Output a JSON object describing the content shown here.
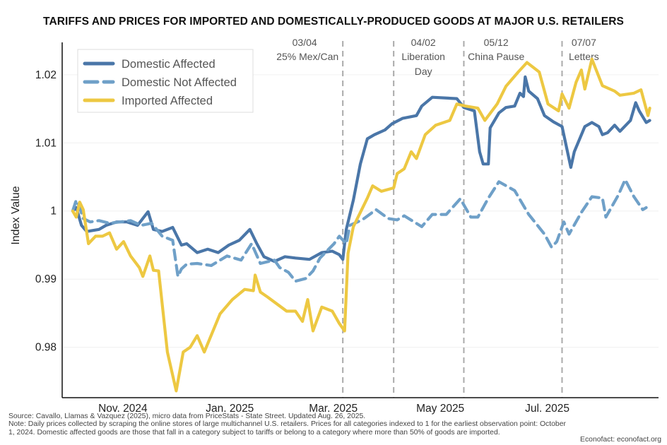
{
  "chart_data": {
    "type": "line",
    "title": "TARIFFS AND PRICES FOR IMPORTED AND DOMESTICALLY-PRODUCED GOODS AT MAJOR U.S. RETAILERS",
    "xlabel": "",
    "ylabel": "Index Value",
    "xlim": [
      "2024-09-25",
      "2025-08-31"
    ],
    "ylim": [
      0.9726,
      1.026
    ],
    "grid": "horizontal",
    "legend_position": "top-left",
    "x_ticks": [
      {
        "date": "2024-11-01",
        "label": "Nov. 2024"
      },
      {
        "date": "2025-01-01",
        "label": "Jan. 2025"
      },
      {
        "date": "2025-03-01",
        "label": "Mar. 2025"
      },
      {
        "date": "2025-05-01",
        "label": "May 2025"
      },
      {
        "date": "2025-07-01",
        "label": "Jul. 2025"
      }
    ],
    "y_ticks": [
      {
        "value": 0.98,
        "label": "0.98"
      },
      {
        "value": 0.99,
        "label": "0.99"
      },
      {
        "value": 1.0,
        "label": "1"
      },
      {
        "value": 1.01,
        "label": "1.01"
      },
      {
        "value": 1.02,
        "label": "1.02"
      }
    ],
    "events": [
      {
        "date": "2025-03-04",
        "label": "03/04",
        "text": [
          "25% Mex/Can"
        ],
        "side": "left"
      },
      {
        "date": "2025-04-02",
        "label": "04/02",
        "text": [
          "Liberation",
          "Day"
        ],
        "side": "right"
      },
      {
        "date": "2025-05-12",
        "label": "05/12",
        "text": [
          "China Pause"
        ],
        "side": "right"
      },
      {
        "date": "2025-07-07",
        "label": "07/07",
        "text": [
          "Letters"
        ],
        "side": "right"
      }
    ],
    "series": [
      {
        "name": "Domestic Affected",
        "color": "#4a76a8",
        "style": "solid",
        "points": [
          [
            "2024-10-01",
            1.0
          ],
          [
            "2024-10-03",
            1.0005
          ],
          [
            "2024-10-06",
            0.9979
          ],
          [
            "2024-10-09",
            0.997
          ],
          [
            "2024-10-16",
            0.9973
          ],
          [
            "2024-10-20",
            0.9979
          ],
          [
            "2024-10-26",
            0.9984
          ],
          [
            "2024-11-01",
            0.9984
          ],
          [
            "2024-11-07",
            0.9979
          ],
          [
            "2024-11-13",
            0.9999
          ],
          [
            "2024-11-16",
            0.9973
          ],
          [
            "2024-11-21",
            0.997
          ],
          [
            "2024-11-27",
            0.9976
          ],
          [
            "2024-12-02",
            0.995
          ],
          [
            "2024-12-05",
            0.9952
          ],
          [
            "2024-12-11",
            0.9939
          ],
          [
            "2024-12-17",
            0.9944
          ],
          [
            "2024-12-23",
            0.9939
          ],
          [
            "2024-12-29",
            0.995
          ],
          [
            "2025-01-04",
            0.9957
          ],
          [
            "2025-01-10",
            0.9973
          ],
          [
            "2025-01-14",
            0.9952
          ],
          [
            "2025-01-18",
            0.9933
          ],
          [
            "2025-01-24",
            0.9926
          ],
          [
            "2025-01-30",
            0.9933
          ],
          [
            "2025-02-05",
            0.9931
          ],
          [
            "2025-02-13",
            0.9929
          ],
          [
            "2025-02-20",
            0.9939
          ],
          [
            "2025-02-26",
            0.9941
          ],
          [
            "2025-03-02",
            0.9936
          ],
          [
            "2025-03-04",
            0.9929
          ],
          [
            "2025-03-06",
            0.9973
          ],
          [
            "2025-03-10",
            1.0016
          ],
          [
            "2025-03-14",
            1.0069
          ],
          [
            "2025-03-18",
            1.0106
          ],
          [
            "2025-03-22",
            1.0112
          ],
          [
            "2025-03-28",
            1.0119
          ],
          [
            "2025-04-01",
            1.0128
          ],
          [
            "2025-04-07",
            1.0136
          ],
          [
            "2025-04-15",
            1.014
          ],
          [
            "2025-04-18",
            1.0154
          ],
          [
            "2025-04-24",
            1.0167
          ],
          [
            "2025-05-08",
            1.0165
          ],
          [
            "2025-05-12",
            1.0152
          ],
          [
            "2025-05-18",
            1.0147
          ],
          [
            "2025-05-21",
            1.0087
          ],
          [
            "2025-05-23",
            1.0069
          ],
          [
            "2025-05-26",
            1.0069
          ],
          [
            "2025-05-27",
            1.0122
          ],
          [
            "2025-06-01",
            1.0144
          ],
          [
            "2025-06-05",
            1.0152
          ],
          [
            "2025-06-10",
            1.0154
          ],
          [
            "2025-06-13",
            1.0173
          ],
          [
            "2025-06-15",
            1.0168
          ],
          [
            "2025-06-16",
            1.0197
          ],
          [
            "2025-06-18",
            1.0176
          ],
          [
            "2025-06-23",
            1.0165
          ],
          [
            "2025-06-27",
            1.014
          ],
          [
            "2025-07-02",
            1.0131
          ],
          [
            "2025-07-07",
            1.0124
          ],
          [
            "2025-07-12",
            1.0064
          ],
          [
            "2025-07-14",
            1.0087
          ],
          [
            "2025-07-20",
            1.0124
          ],
          [
            "2025-07-24",
            1.013
          ],
          [
            "2025-07-28",
            1.0124
          ],
          [
            "2025-07-30",
            1.0112
          ],
          [
            "2025-08-02",
            1.0115
          ],
          [
            "2025-08-06",
            1.0126
          ],
          [
            "2025-08-09",
            1.0117
          ],
          [
            "2025-08-15",
            1.0133
          ],
          [
            "2025-08-18",
            1.0159
          ],
          [
            "2025-08-20",
            1.0147
          ],
          [
            "2025-08-24",
            1.013
          ],
          [
            "2025-08-26",
            1.0133
          ]
        ]
      },
      {
        "name": "Domestic Not Affected",
        "color": "#6fa0c8",
        "style": "dashed",
        "points": [
          [
            "2024-10-01",
            1.0
          ],
          [
            "2024-10-03",
            1.0016
          ],
          [
            "2024-10-05",
            1.0005
          ],
          [
            "2024-10-07",
            0.9989
          ],
          [
            "2024-10-11",
            0.9984
          ],
          [
            "2024-10-16",
            0.9986
          ],
          [
            "2024-10-22",
            0.9982
          ],
          [
            "2024-10-28",
            0.9984
          ],
          [
            "2024-11-03",
            0.9986
          ],
          [
            "2024-11-09",
            0.9979
          ],
          [
            "2024-11-15",
            0.9982
          ],
          [
            "2024-11-21",
            0.9963
          ],
          [
            "2024-11-27",
            0.9957
          ],
          [
            "2024-11-30",
            0.9904
          ],
          [
            "2024-12-02",
            0.9915
          ],
          [
            "2024-12-05",
            0.9922
          ],
          [
            "2024-12-11",
            0.9923
          ],
          [
            "2024-12-19",
            0.992
          ],
          [
            "2024-12-28",
            0.9934
          ],
          [
            "2025-01-05",
            0.9928
          ],
          [
            "2025-01-11",
            0.9952
          ],
          [
            "2025-01-16",
            0.9923
          ],
          [
            "2025-01-24",
            0.9928
          ],
          [
            "2025-01-27",
            0.9917
          ],
          [
            "2025-02-01",
            0.991
          ],
          [
            "2025-02-05",
            0.9897
          ],
          [
            "2025-02-11",
            0.9901
          ],
          [
            "2025-02-15",
            0.9912
          ],
          [
            "2025-02-19",
            0.9931
          ],
          [
            "2025-02-27",
            0.9952
          ],
          [
            "2025-03-02",
            0.9963
          ],
          [
            "2025-03-06",
            0.9952
          ],
          [
            "2025-03-08",
            0.9979
          ],
          [
            "2025-03-15",
            0.9987
          ],
          [
            "2025-03-23",
            1.0002
          ],
          [
            "2025-03-30",
            0.9989
          ],
          [
            "2025-04-04",
            0.9987
          ],
          [
            "2025-04-08",
            0.9993
          ],
          [
            "2025-04-18",
            0.9977
          ],
          [
            "2025-04-24",
            0.9995
          ],
          [
            "2025-05-02",
            0.9995
          ],
          [
            "2025-05-10",
            1.0018
          ],
          [
            "2025-05-16",
            0.9991
          ],
          [
            "2025-05-20",
            0.9991
          ],
          [
            "2025-05-26",
            1.0019
          ],
          [
            "2025-06-01",
            1.0043
          ],
          [
            "2025-06-10",
            1.003
          ],
          [
            "2025-06-18",
            0.9995
          ],
          [
            "2025-06-27",
            0.9966
          ],
          [
            "2025-07-01",
            0.9947
          ],
          [
            "2025-07-04",
            0.9955
          ],
          [
            "2025-07-08",
            0.9984
          ],
          [
            "2025-07-11",
            0.9966
          ],
          [
            "2025-07-18",
            0.9998
          ],
          [
            "2025-07-24",
            1.0021
          ],
          [
            "2025-07-30",
            1.0019
          ],
          [
            "2025-08-01",
            0.9991
          ],
          [
            "2025-08-08",
            1.0023
          ],
          [
            "2025-08-12",
            1.0046
          ],
          [
            "2025-08-17",
            1.0021
          ],
          [
            "2025-08-22",
            1.0002
          ],
          [
            "2025-08-24",
            1.0005
          ]
        ]
      },
      {
        "name": "Imported Affected",
        "color": "#edc842",
        "style": "solid",
        "points": [
          [
            "2024-10-01",
            1.0
          ],
          [
            "2024-10-03",
            0.9991
          ],
          [
            "2024-10-05",
            1.0013
          ],
          [
            "2024-10-07",
            1.0002
          ],
          [
            "2024-10-10",
            0.9952
          ],
          [
            "2024-10-14",
            0.9963
          ],
          [
            "2024-10-18",
            0.9963
          ],
          [
            "2024-10-22",
            0.9968
          ],
          [
            "2024-10-26",
            0.9944
          ],
          [
            "2024-10-30",
            0.9955
          ],
          [
            "2024-11-03",
            0.9934
          ],
          [
            "2024-11-08",
            0.9917
          ],
          [
            "2024-11-10",
            0.9904
          ],
          [
            "2024-11-14",
            0.9934
          ],
          [
            "2024-11-16",
            0.9913
          ],
          [
            "2024-11-19",
            0.9912
          ],
          [
            "2024-11-24",
            0.9793
          ],
          [
            "2024-11-29",
            0.9736
          ],
          [
            "2024-12-03",
            0.9793
          ],
          [
            "2024-12-07",
            0.98
          ],
          [
            "2024-12-11",
            0.9817
          ],
          [
            "2024-12-15",
            0.9793
          ],
          [
            "2024-12-24",
            0.9849
          ],
          [
            "2024-12-31",
            0.987
          ],
          [
            "2025-01-07",
            0.9885
          ],
          [
            "2025-01-12",
            0.9883
          ],
          [
            "2025-01-13",
            0.9906
          ],
          [
            "2025-01-16",
            0.9881
          ],
          [
            "2025-01-20",
            0.9874
          ],
          [
            "2025-01-31",
            0.9853
          ],
          [
            "2025-02-05",
            0.9853
          ],
          [
            "2025-02-09",
            0.9838
          ],
          [
            "2025-02-12",
            0.987
          ],
          [
            "2025-02-15",
            0.9824
          ],
          [
            "2025-02-20",
            0.9859
          ],
          [
            "2025-02-26",
            0.9853
          ],
          [
            "2025-03-02",
            0.9835
          ],
          [
            "2025-03-05",
            0.9824
          ],
          [
            "2025-03-07",
            0.9938
          ],
          [
            "2025-03-10",
            0.9977
          ],
          [
            "2025-03-14",
            0.9998
          ],
          [
            "2025-03-18",
            1.0019
          ],
          [
            "2025-03-21",
            1.0037
          ],
          [
            "2025-03-26",
            1.0029
          ],
          [
            "2025-04-02",
            1.0034
          ],
          [
            "2025-04-04",
            1.0055
          ],
          [
            "2025-04-08",
            1.0062
          ],
          [
            "2025-04-12",
            1.0087
          ],
          [
            "2025-04-15",
            1.0077
          ],
          [
            "2025-04-20",
            1.0112
          ],
          [
            "2025-04-26",
            1.0126
          ],
          [
            "2025-05-04",
            1.0133
          ],
          [
            "2025-05-08",
            1.0157
          ],
          [
            "2025-05-13",
            1.0154
          ],
          [
            "2025-05-20",
            1.0151
          ],
          [
            "2025-05-24",
            1.0133
          ],
          [
            "2025-05-31",
            1.0157
          ],
          [
            "2025-06-05",
            1.0183
          ],
          [
            "2025-06-12",
            1.0204
          ],
          [
            "2025-06-17",
            1.0218
          ],
          [
            "2025-06-24",
            1.0204
          ],
          [
            "2025-06-29",
            1.0157
          ],
          [
            "2025-07-05",
            1.0147
          ],
          [
            "2025-07-07",
            1.0172
          ],
          [
            "2025-07-11",
            1.0151
          ],
          [
            "2025-07-15",
            1.0189
          ],
          [
            "2025-07-18",
            1.0207
          ],
          [
            "2025-07-20",
            1.0179
          ],
          [
            "2025-07-24",
            1.0223
          ],
          [
            "2025-07-30",
            1.0184
          ],
          [
            "2025-08-06",
            1.0176
          ],
          [
            "2025-08-09",
            1.017
          ],
          [
            "2025-08-17",
            1.0173
          ],
          [
            "2025-08-21",
            1.0178
          ],
          [
            "2025-08-25",
            1.014
          ],
          [
            "2025-08-26",
            1.0151
          ]
        ]
      }
    ]
  },
  "footer": {
    "source": "Source: Cavallo, Llamas & Vazquez (2025), micro data from PriceStats - State Street. Updated Aug. 26, 2025.",
    "note": "Note: Daily prices collected by scraping the online stores of large multichannel U.S. retailers. Prices for all categories indexed to 1 for the earliest observation point: October 1, 2024. Domestic affected goods are those that fall in a category subject to tariffs or belong to a category where more than 50% of goods are imported.",
    "credit": "Econofact: econofact.org"
  }
}
